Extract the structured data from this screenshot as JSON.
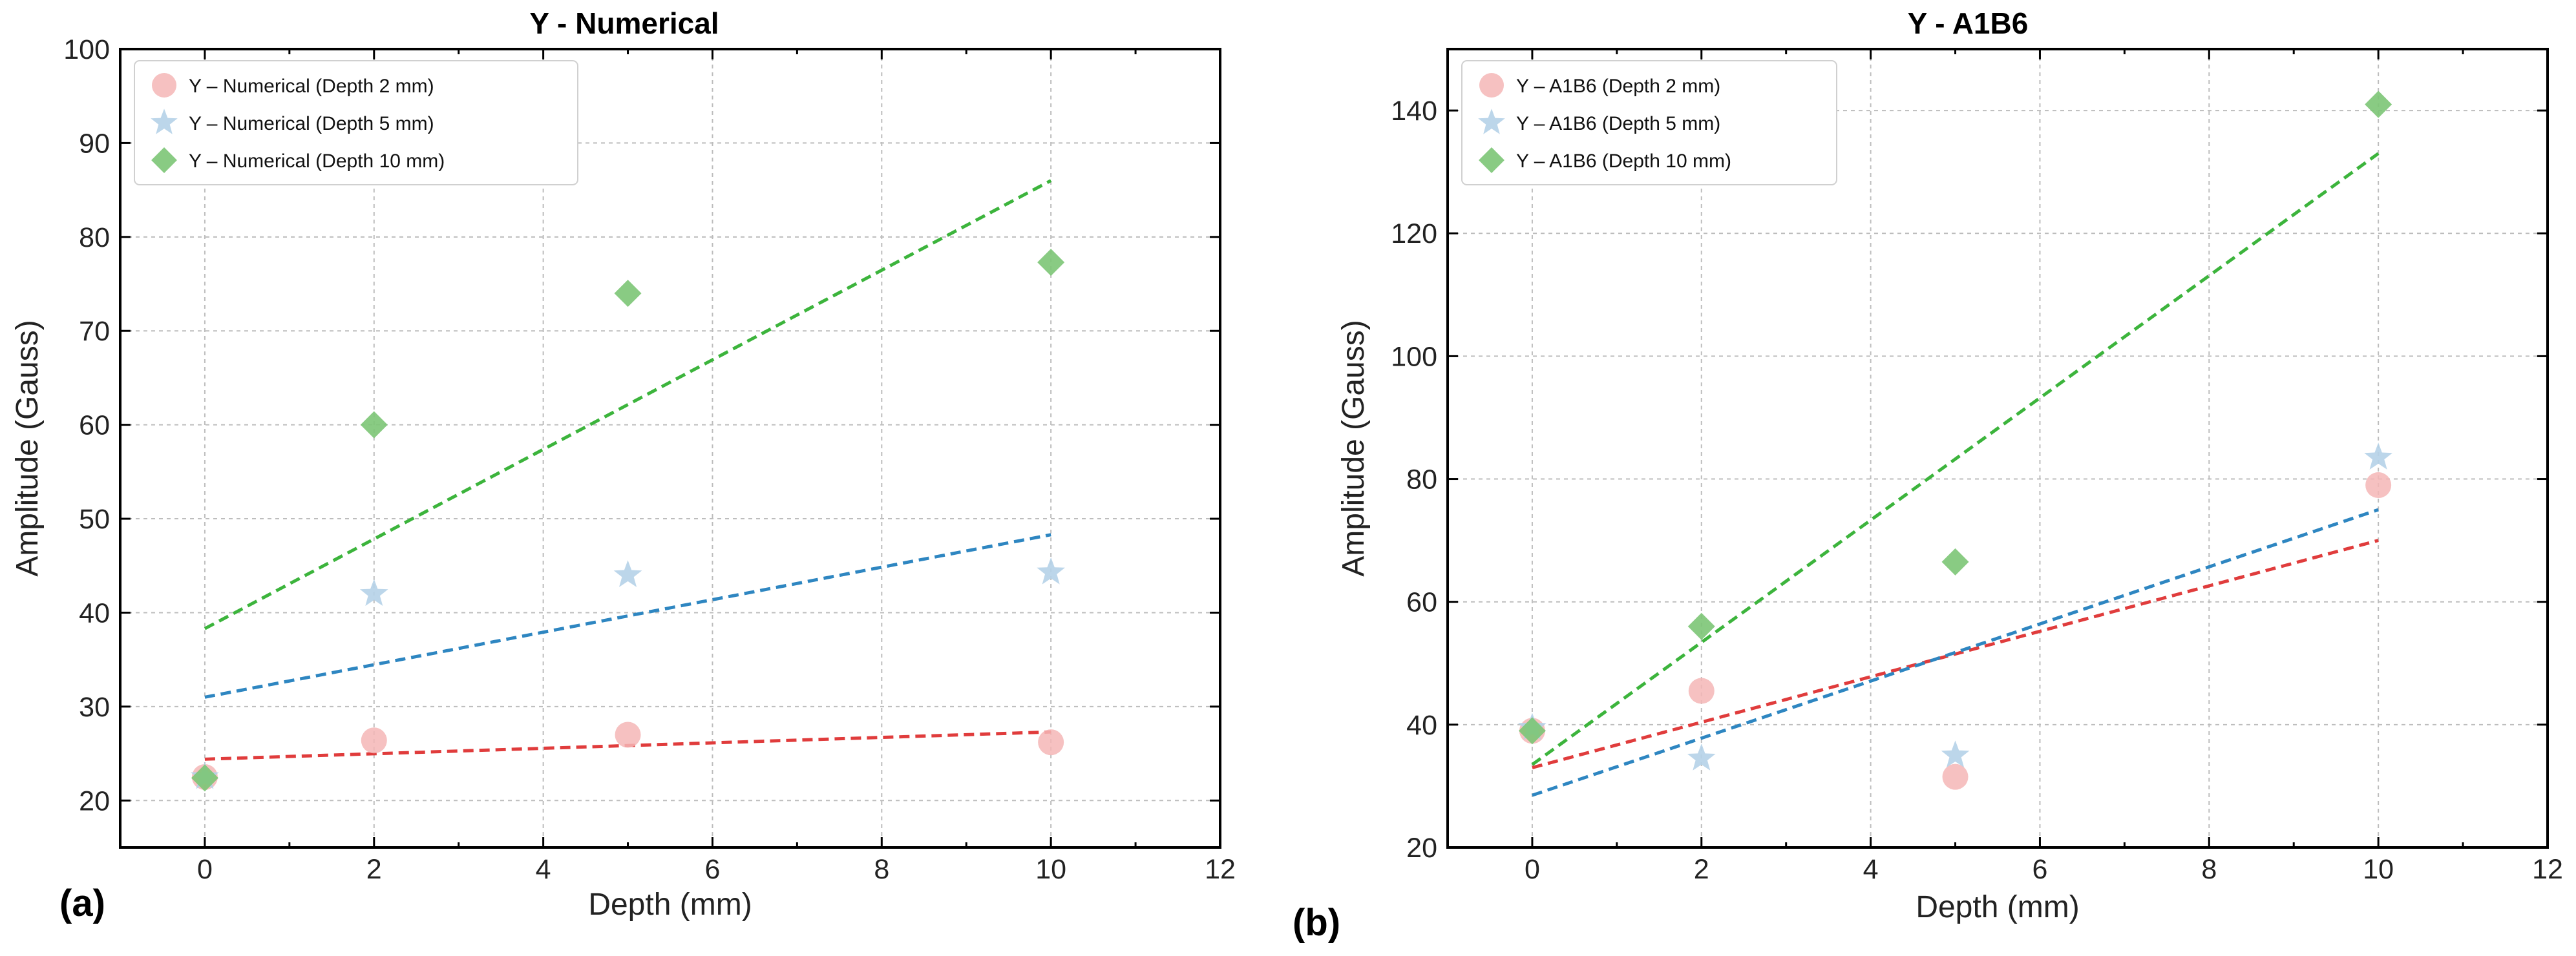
{
  "chart_data": [
    {
      "panel_label": "(a)",
      "type": "scatter",
      "title": "Y - Numerical",
      "xlabel": "Depth (mm)",
      "ylabel": "Amplitude (Gauss)",
      "xlim": [
        -1,
        12
      ],
      "ylim": [
        15,
        100
      ],
      "xticks": [
        0,
        2,
        4,
        6,
        8,
        10,
        12
      ],
      "yticks": [
        20,
        30,
        40,
        50,
        60,
        70,
        80,
        90,
        100
      ],
      "grid": true,
      "legend_position": "top-left",
      "series": [
        {
          "name": "Y – Numerical (Depth 2 mm)",
          "marker": "circle",
          "color": "#f4b6b6",
          "x": [
            0,
            2,
            5,
            10
          ],
          "y": [
            22.5,
            26.4,
            27.0,
            26.2
          ],
          "trendline": {
            "x": [
              0,
              10
            ],
            "y": [
              24.4,
              27.3
            ],
            "color": "#e03c3c"
          }
        },
        {
          "name": "Y – Numerical (Depth 5 mm)",
          "marker": "star",
          "color": "#b5d1e8",
          "x": [
            0,
            2,
            5,
            10
          ],
          "y": [
            22.5,
            42.0,
            44.0,
            44.3
          ],
          "trendline": {
            "x": [
              0,
              10
            ],
            "y": [
              31.0,
              48.3
            ],
            "color": "#2e86c1"
          }
        },
        {
          "name": "Y – Numerical (Depth 10 mm)",
          "marker": "diamond",
          "color": "#7cc576",
          "x": [
            0,
            2,
            5,
            10
          ],
          "y": [
            22.4,
            60.0,
            74.0,
            77.3
          ],
          "trendline": {
            "x": [
              0,
              10
            ],
            "y": [
              38.3,
              86.0
            ],
            "color": "#3cb43c"
          }
        }
      ]
    },
    {
      "panel_label": "(b)",
      "type": "scatter",
      "title": "Y - A1B6",
      "xlabel": "Depth (mm)",
      "ylabel": "Amplitude (Gauss)",
      "xlim": [
        -1,
        12
      ],
      "ylim": [
        20,
        150
      ],
      "xticks": [
        0,
        2,
        4,
        6,
        8,
        10,
        12
      ],
      "yticks": [
        20,
        40,
        60,
        80,
        100,
        120,
        140
      ],
      "grid": true,
      "legend_position": "top-left",
      "series": [
        {
          "name": "Y – A1B6 (Depth 2 mm)",
          "marker": "circle",
          "color": "#f4b6b6",
          "x": [
            0,
            2,
            5,
            10
          ],
          "y": [
            39.0,
            45.5,
            31.5,
            79.0
          ],
          "trendline": {
            "x": [
              0,
              10
            ],
            "y": [
              33.0,
              70.0
            ],
            "color": "#e03c3c"
          }
        },
        {
          "name": "Y – A1B6 (Depth 5 mm)",
          "marker": "star",
          "color": "#b5d1e8",
          "x": [
            0,
            2,
            5,
            10
          ],
          "y": [
            39.5,
            34.5,
            35.0,
            83.5
          ],
          "trendline": {
            "x": [
              0,
              10
            ],
            "y": [
              28.5,
              75.0
            ],
            "color": "#2e86c1"
          }
        },
        {
          "name": "Y – A1B6 (Depth 10 mm)",
          "marker": "diamond",
          "color": "#7cc576",
          "x": [
            0,
            2,
            5,
            10
          ],
          "y": [
            39.0,
            56.0,
            66.5,
            141.0
          ],
          "trendline": {
            "x": [
              0,
              10
            ],
            "y": [
              33.5,
              133.0
            ],
            "color": "#3cb43c"
          }
        }
      ]
    }
  ]
}
